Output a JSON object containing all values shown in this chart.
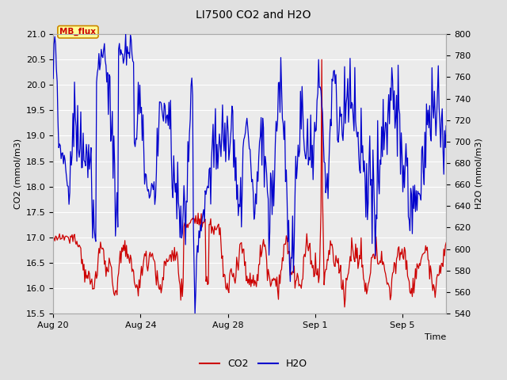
{
  "title": "LI7500 CO2 and H2O",
  "xlabel": "Time",
  "ylabel_left": "CO2 (mmol/m3)",
  "ylabel_right": "H2O (mmol/m3)",
  "ylim_left": [
    15.5,
    21.0
  ],
  "ylim_right": [
    540,
    800
  ],
  "yticks_left": [
    15.5,
    16.0,
    16.5,
    17.0,
    17.5,
    18.0,
    18.5,
    19.0,
    19.5,
    20.0,
    20.5,
    21.0
  ],
  "yticks_right": [
    540,
    560,
    580,
    600,
    620,
    640,
    660,
    680,
    700,
    720,
    740,
    760,
    780,
    800
  ],
  "xtick_labels": [
    "Aug 20",
    "Aug 24",
    "Aug 28",
    "Sep 1",
    "Sep 5"
  ],
  "xtick_days": [
    0,
    4,
    8,
    12,
    16
  ],
  "xlim": [
    0,
    18
  ],
  "co2_color": "#cc0000",
  "h2o_color": "#0000cc",
  "bg_color": "#e0e0e0",
  "plot_bg_color": "#ebebeb",
  "legend_co2": "CO2",
  "legend_h2o": "H2O",
  "annotation_text": "MB_flux",
  "annotation_bg": "#ffff99",
  "annotation_border": "#cc8800",
  "grid_color": "#ffffff",
  "title_fontsize": 10,
  "axis_fontsize": 8,
  "tick_fontsize": 8
}
